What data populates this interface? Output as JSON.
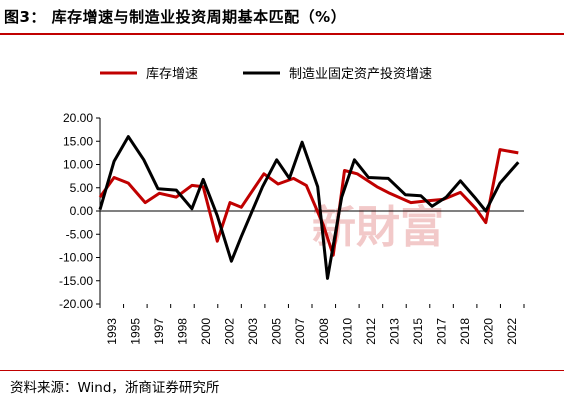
{
  "figure": {
    "title": "图3：  库存增速与制造业投资周期基本匹配（%）",
    "source": "资料来源：Wind，浙商证券研究所",
    "watermark": "新財富"
  },
  "colors": {
    "series1": "#c00000",
    "series2": "#000000",
    "rule": "#c00000",
    "watermark": "#f2c9c9"
  },
  "chart_data": {
    "type": "line",
    "ylim": [
      -20,
      20
    ],
    "y_ticks": [
      "20.00",
      "15.00",
      "10.00",
      "5.00",
      "0.00",
      "-5.00",
      "-10.00",
      "-15.00",
      "-20.00"
    ],
    "x_tick_labels": [
      "1993",
      "1995",
      "1997",
      "1998",
      "2000",
      "2002",
      "2003",
      "2005",
      "2007",
      "2008",
      "2010",
      "2012",
      "2013",
      "2015",
      "2017",
      "2018",
      "2020",
      "2022"
    ],
    "legend_position": "top",
    "grid": false,
    "series": [
      {
        "name": "库存增速",
        "color": "#c00000",
        "points": [
          [
            1993.0,
            3.0
          ],
          [
            1994.0,
            7.2
          ],
          [
            1995.0,
            6.0
          ],
          [
            1996.2,
            1.8
          ],
          [
            1997.2,
            3.8
          ],
          [
            1998.4,
            3.0
          ],
          [
            1999.5,
            5.5
          ],
          [
            2000.3,
            5.2
          ],
          [
            2001.3,
            -6.5
          ],
          [
            2002.2,
            1.8
          ],
          [
            2003.0,
            0.8
          ],
          [
            2004.6,
            8.0
          ],
          [
            2005.6,
            5.8
          ],
          [
            2006.7,
            7.0
          ],
          [
            2007.6,
            5.5
          ],
          [
            2008.8,
            -3.0
          ],
          [
            2009.5,
            -9.5
          ],
          [
            2010.3,
            8.7
          ],
          [
            2011.2,
            8.0
          ],
          [
            2012.6,
            5.2
          ],
          [
            2013.5,
            3.8
          ],
          [
            2015.0,
            1.8
          ],
          [
            2016.2,
            2.2
          ],
          [
            2017.3,
            2.5
          ],
          [
            2018.5,
            4.0
          ],
          [
            2019.6,
            0.5
          ],
          [
            2020.3,
            -2.5
          ],
          [
            2021.3,
            13.2
          ],
          [
            2022.6,
            12.5
          ]
        ]
      },
      {
        "name": "制造业固定资产投资增速",
        "color": "#000000",
        "points": [
          [
            1993.0,
            0.3
          ],
          [
            1994.0,
            10.7
          ],
          [
            1995.0,
            16.0
          ],
          [
            1996.1,
            11.0
          ],
          [
            1997.1,
            4.8
          ],
          [
            1998.4,
            4.5
          ],
          [
            1999.5,
            0.5
          ],
          [
            2000.3,
            6.8
          ],
          [
            2001.3,
            -1.0
          ],
          [
            2002.3,
            -10.8
          ],
          [
            2003.0,
            -5.5
          ],
          [
            2004.5,
            5.2
          ],
          [
            2005.5,
            11.0
          ],
          [
            2006.4,
            7.0
          ],
          [
            2007.3,
            14.8
          ],
          [
            2008.4,
            5.2
          ],
          [
            2009.1,
            -14.5
          ],
          [
            2010.1,
            3.0
          ],
          [
            2011.0,
            11.0
          ],
          [
            2012.0,
            7.2
          ],
          [
            2013.4,
            7.0
          ],
          [
            2014.6,
            3.5
          ],
          [
            2015.7,
            3.3
          ],
          [
            2016.5,
            1.0
          ],
          [
            2017.5,
            3.0
          ],
          [
            2018.5,
            6.5
          ],
          [
            2019.5,
            3.0
          ],
          [
            2020.3,
            0.0
          ],
          [
            2021.3,
            6.0
          ],
          [
            2022.6,
            10.5
          ]
        ]
      }
    ]
  }
}
